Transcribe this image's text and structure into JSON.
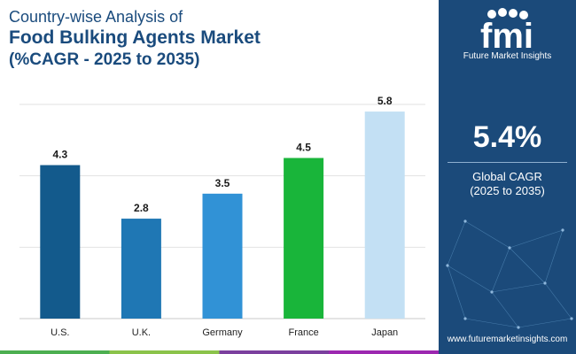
{
  "header": {
    "line1": "Country-wise Analysis of",
    "line2": "Food Bulking Agents Market",
    "line3": "(%CAGR - 2025 to 2035)"
  },
  "chart_data": {
    "type": "bar",
    "title": "Country-wise Analysis of Food Bulking Agents Market (%CAGR - 2025 to 2035)",
    "categories": [
      "U.S.",
      "U.K.",
      "Germany",
      "France",
      "Japan"
    ],
    "values": [
      4.3,
      2.8,
      3.5,
      4.5,
      5.8
    ],
    "value_labels": [
      "4.3",
      "2.8",
      "3.5",
      "4.5",
      "5.8"
    ],
    "bar_colors": [
      "#135a8c",
      "#1f77b4",
      "#3192d6",
      "#19b53a",
      "#c3e0f4"
    ],
    "xlabel": "",
    "ylabel": "",
    "ylim": [
      0,
      6
    ],
    "grid": true,
    "grid_values": [
      0,
      2,
      4,
      6
    ]
  },
  "brand": {
    "logo_text": "fmi",
    "name": "Future Market Insights",
    "website": "www.futuremarketinsights.com"
  },
  "cagr": {
    "value": "5.4%",
    "label": "Global CAGR",
    "period": "(2025 to 2035)"
  },
  "colors": {
    "title": "#1a4b7d",
    "panel": "#1b4a7a",
    "stripe": [
      "#4caf50",
      "#8bc34a",
      "#7b3f9e",
      "#9c27b0"
    ]
  }
}
